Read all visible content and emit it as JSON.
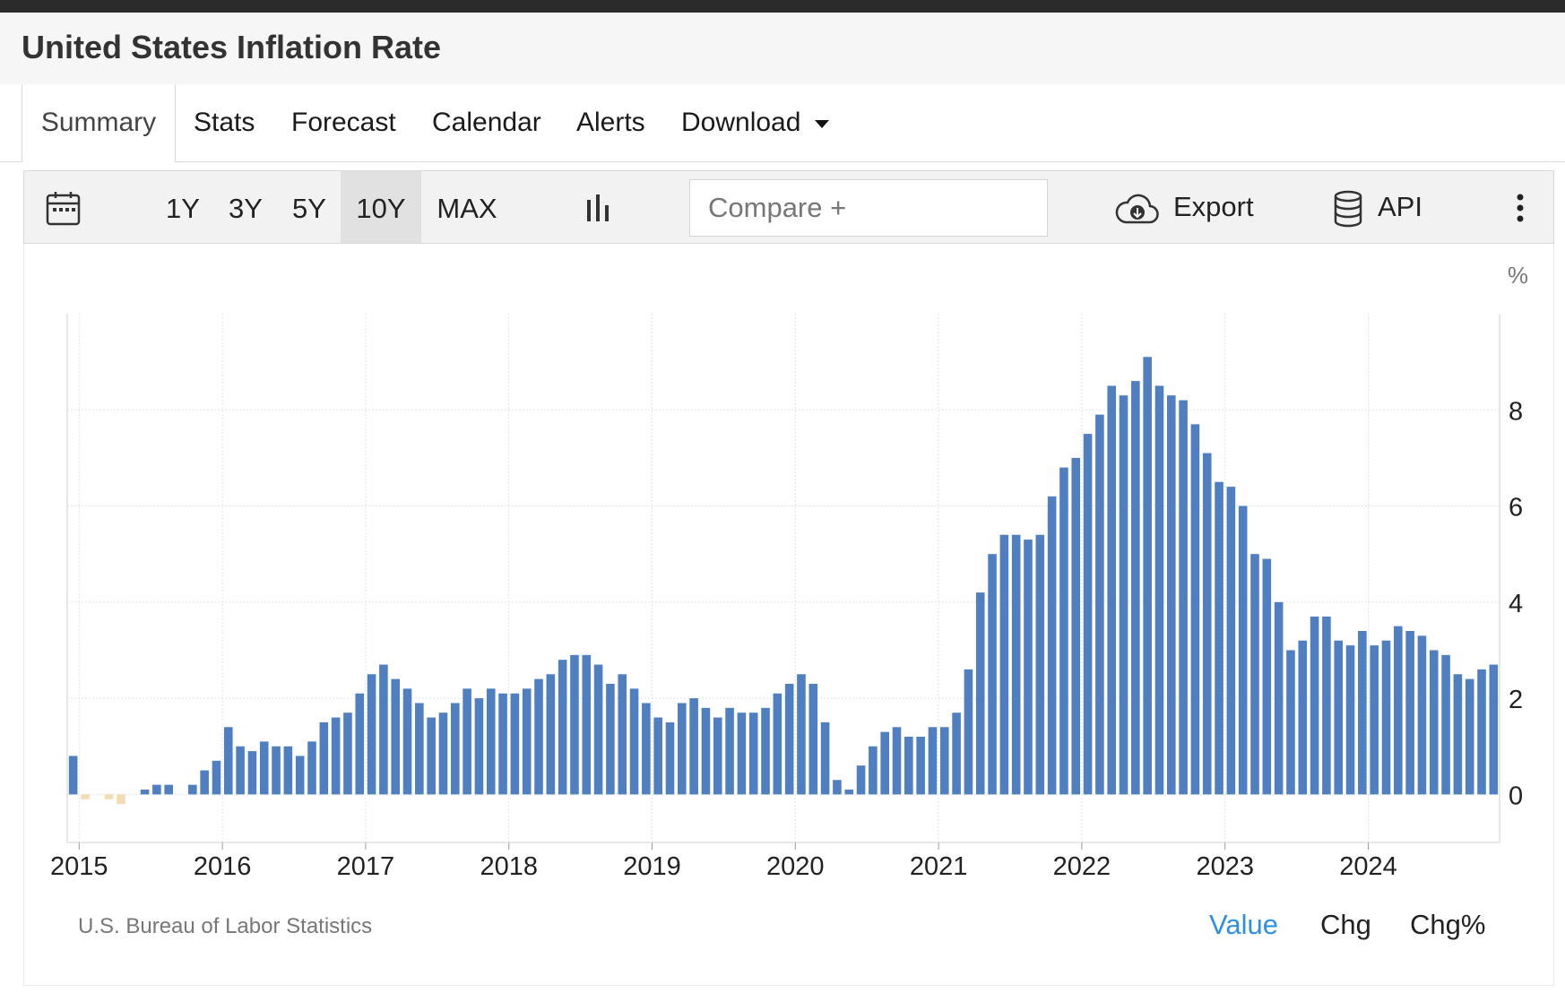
{
  "page": {
    "title": "United States Inflation Rate"
  },
  "tabs": {
    "summary": "Summary",
    "stats": "Stats",
    "forecast": "Forecast",
    "calendar": "Calendar",
    "alerts": "Alerts",
    "download": "Download"
  },
  "toolbar": {
    "ranges": [
      "1Y",
      "3Y",
      "5Y",
      "10Y",
      "MAX"
    ],
    "active_range": "10Y",
    "compare_placeholder": "Compare +",
    "export_label": "Export",
    "api_label": "API"
  },
  "footer": {
    "source": "U.S. Bureau of Labor Statistics",
    "value_label": "Value",
    "chg_label": "Chg",
    "chgpct_label": "Chg%",
    "active_view": "Value"
  },
  "colors": {
    "bar_positive": "#4f7fc0",
    "bar_negative": "#f3dcb2",
    "accent": "#2f8fe4"
  },
  "chart_data": {
    "type": "bar",
    "unit_label": "%",
    "x_tick_labels": [
      "2015",
      "2016",
      "2017",
      "2018",
      "2019",
      "2020",
      "2021",
      "2022",
      "2023",
      "2024"
    ],
    "x_start": "2014-12",
    "x_end": "2024-11",
    "ylim": [
      -1,
      10
    ],
    "y_ticks": [
      0,
      2,
      4,
      6,
      8
    ],
    "grid": true,
    "y_axis_side": "right",
    "values": [
      0.8,
      -0.1,
      0.0,
      -0.1,
      -0.2,
      0.0,
      0.1,
      0.2,
      0.2,
      0.0,
      0.2,
      0.5,
      0.7,
      1.4,
      1.0,
      0.9,
      1.1,
      1.0,
      1.0,
      0.8,
      1.1,
      1.5,
      1.6,
      1.7,
      2.1,
      2.5,
      2.7,
      2.4,
      2.2,
      1.9,
      1.6,
      1.7,
      1.9,
      2.2,
      2.0,
      2.2,
      2.1,
      2.1,
      2.2,
      2.4,
      2.5,
      2.8,
      2.9,
      2.9,
      2.7,
      2.3,
      2.5,
      2.2,
      1.9,
      1.6,
      1.5,
      1.9,
      2.0,
      1.8,
      1.6,
      1.8,
      1.7,
      1.7,
      1.8,
      2.1,
      2.3,
      2.5,
      2.3,
      1.5,
      0.3,
      0.1,
      0.6,
      1.0,
      1.3,
      1.4,
      1.2,
      1.2,
      1.4,
      1.4,
      1.7,
      2.6,
      4.2,
      5.0,
      5.4,
      5.4,
      5.3,
      5.4,
      6.2,
      6.8,
      7.0,
      7.5,
      7.9,
      8.5,
      8.3,
      8.6,
      9.1,
      8.5,
      8.3,
      8.2,
      7.7,
      7.1,
      6.5,
      6.4,
      6.0,
      5.0,
      4.9,
      4.0,
      3.0,
      3.2,
      3.7,
      3.7,
      3.2,
      3.1,
      3.4,
      3.1,
      3.2,
      3.5,
      3.4,
      3.3,
      3.0,
      2.9,
      2.5,
      2.4,
      2.6,
      2.7
    ]
  }
}
